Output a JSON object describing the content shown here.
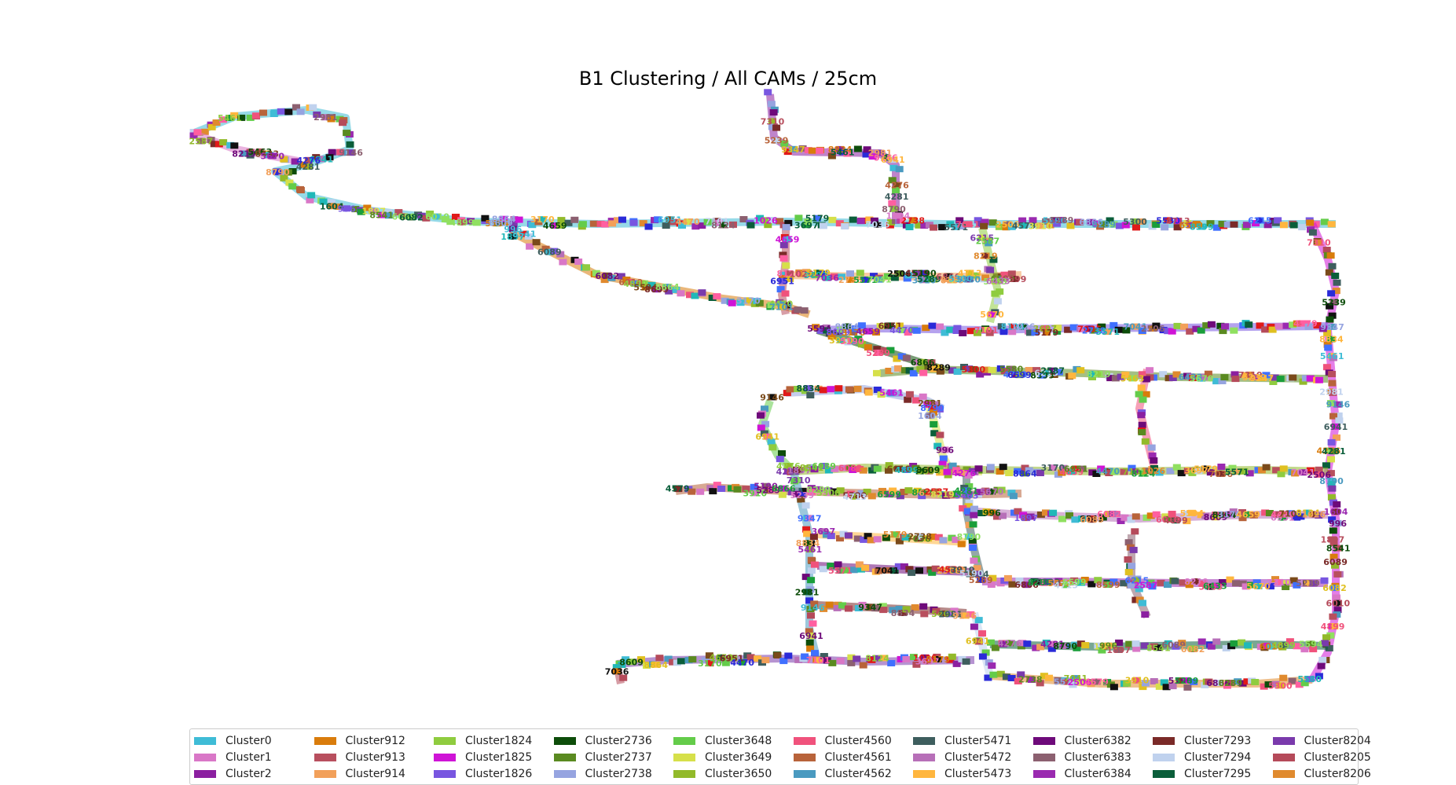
{
  "chart_data": {
    "type": "scatter",
    "title": "B1 Clustering / All CAMs / 25cm",
    "xlabel": "",
    "ylabel": "",
    "axes_visible": false,
    "grid": false,
    "legend_position": "bottom",
    "legend": [
      {
        "name": "Cluster0",
        "color": "#3fbcd6"
      },
      {
        "name": "Cluster1",
        "color": "#d977c7"
      },
      {
        "name": "Cluster2",
        "color": "#8b1fa0"
      },
      {
        "name": "Cluster912",
        "color": "#d97c0c"
      },
      {
        "name": "Cluster913",
        "color": "#b84f5e"
      },
      {
        "name": "Cluster914",
        "color": "#f2a05a"
      },
      {
        "name": "Cluster1824",
        "color": "#8fcc3f"
      },
      {
        "name": "Cluster1825",
        "color": "#cf14d6"
      },
      {
        "name": "Cluster1826",
        "color": "#7856e0"
      },
      {
        "name": "Cluster2736",
        "color": "#0d4d0a"
      },
      {
        "name": "Cluster2737",
        "color": "#5a8a20"
      },
      {
        "name": "Cluster2738",
        "color": "#96a4e0"
      },
      {
        "name": "Cluster3648",
        "color": "#64cc4a"
      },
      {
        "name": "Cluster3649",
        "color": "#d6e04a"
      },
      {
        "name": "Cluster3650",
        "color": "#92ba2a"
      },
      {
        "name": "Cluster4560",
        "color": "#f0527c"
      },
      {
        "name": "Cluster4561",
        "color": "#b8633a"
      },
      {
        "name": "Cluster4562",
        "color": "#4a9ac0"
      },
      {
        "name": "Cluster5471",
        "color": "#3e5e5e"
      },
      {
        "name": "Cluster5472",
        "color": "#b76fb8"
      },
      {
        "name": "Cluster5473",
        "color": "#ffb63e"
      },
      {
        "name": "Cluster6382",
        "color": "#6e0a7a"
      },
      {
        "name": "Cluster6383",
        "color": "#8c6070"
      },
      {
        "name": "Cluster6384",
        "color": "#9a2ab0"
      },
      {
        "name": "Cluster7293",
        "color": "#7a2a28"
      },
      {
        "name": "Cluster7294",
        "color": "#c0d2ee"
      },
      {
        "name": "Cluster7295",
        "color": "#0a5e3a"
      },
      {
        "name": "Cluster8204",
        "color": "#7a3aac"
      },
      {
        "name": "Cluster8205",
        "color": "#b54a5a"
      },
      {
        "name": "Cluster8206",
        "color": "#e08a2e"
      }
    ],
    "point_labels": [
      "5461",
      "2981",
      "9146",
      "6941",
      "4276",
      "4281",
      "8790",
      "1604",
      "996",
      "1897",
      "8541",
      "6089",
      "6082",
      "6010",
      "4899",
      "5594",
      "8609",
      "8864",
      "3170",
      "4659",
      "6951",
      "4470",
      "7101",
      "8124",
      "1026",
      "3697",
      "5179",
      "7036",
      "2738",
      "5571",
      "7041",
      "2506",
      "4579",
      "3910",
      "5190",
      "5289",
      "6866",
      "8289",
      "5300",
      "5580",
      "4713",
      "6599",
      "8599",
      "6215",
      "2587",
      "8219",
      "5463",
      "6433",
      "5670",
      "7310",
      "5239",
      "9347",
      "8834"
    ]
  }
}
